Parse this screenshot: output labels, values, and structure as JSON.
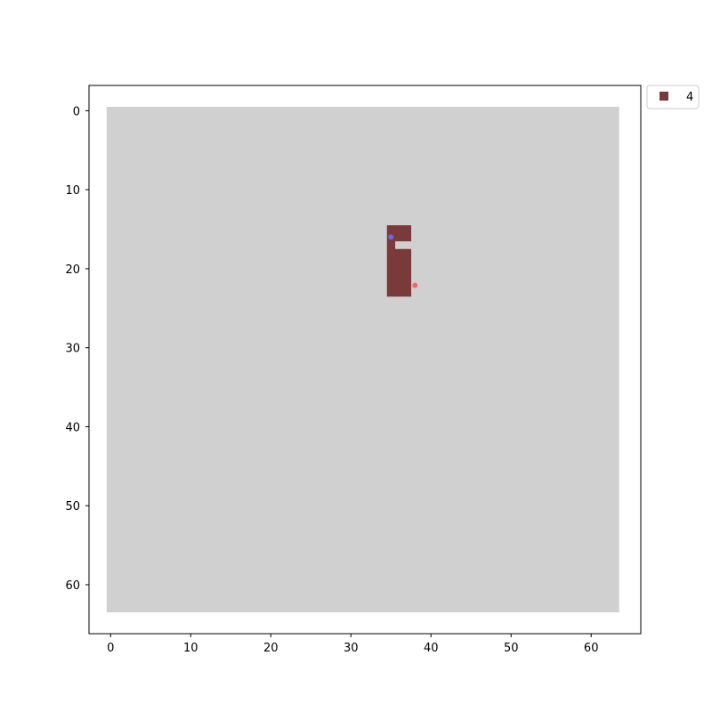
{
  "chart_data": {
    "type": "heatmap",
    "title": "",
    "xlabel": "",
    "ylabel": "",
    "xlim": [
      -2.7,
      66.2
    ],
    "ylim": [
      66.2,
      -3.2
    ],
    "y_inverted": true,
    "grid": false,
    "x_ticks": [
      0,
      10,
      20,
      30,
      40,
      50,
      60
    ],
    "y_ticks": [
      0,
      10,
      20,
      30,
      40,
      50,
      60
    ],
    "background_region": {
      "x0": -0.5,
      "x1": 63.5,
      "y0": -0.5,
      "y1": 63.5,
      "color": "#d0d0d0"
    },
    "region_color": "#7a3a3a",
    "region_cells": [
      [
        35,
        15
      ],
      [
        36,
        15
      ],
      [
        37,
        15
      ],
      [
        35,
        16
      ],
      [
        36,
        16
      ],
      [
        37,
        16
      ],
      [
        35,
        17
      ],
      [
        35,
        18
      ],
      [
        36,
        18
      ],
      [
        37,
        18
      ],
      [
        35,
        19
      ],
      [
        36,
        19
      ],
      [
        37,
        19
      ],
      [
        35,
        20
      ],
      [
        36,
        20
      ],
      [
        37,
        20
      ],
      [
        35,
        21
      ],
      [
        36,
        21
      ],
      [
        37,
        21
      ],
      [
        35,
        22
      ],
      [
        36,
        22
      ],
      [
        37,
        22
      ],
      [
        35,
        23
      ],
      [
        36,
        23
      ],
      [
        37,
        23
      ]
    ],
    "points": [
      {
        "x": 35.0,
        "y": 16.0,
        "color": "#6f6fff"
      },
      {
        "x": 38.0,
        "y": 22.1,
        "color": "#ff4d4d"
      }
    ],
    "legend": {
      "placement": "outside-top-right",
      "entries": [
        {
          "label": "4",
          "color": "#7a3a3a"
        }
      ]
    }
  }
}
